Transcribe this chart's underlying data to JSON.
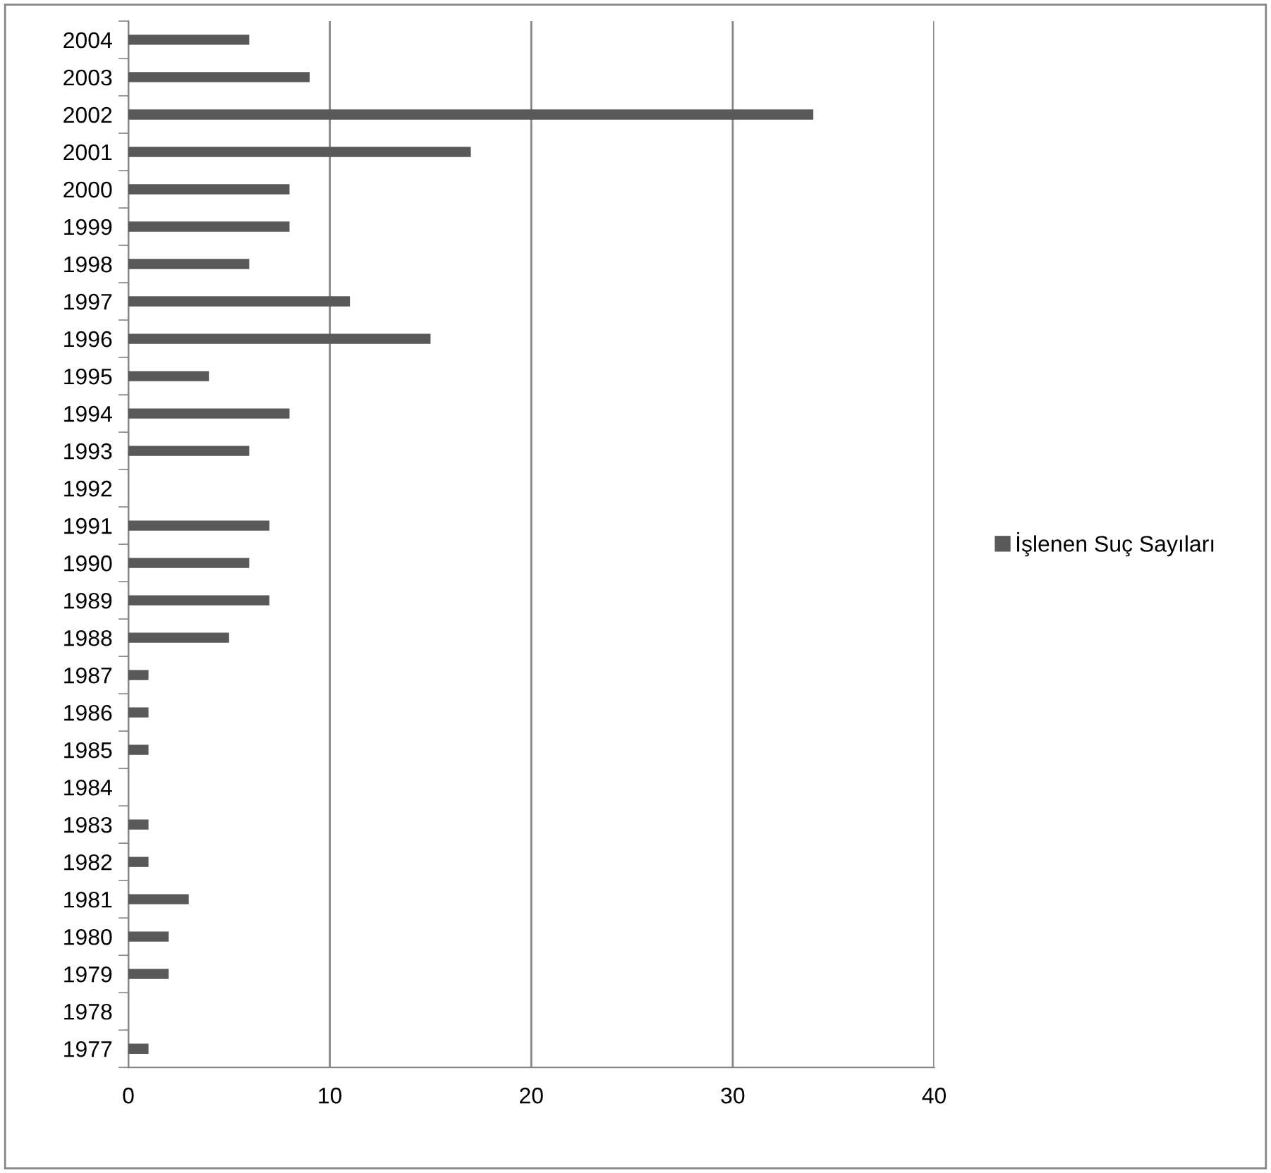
{
  "chart_data": {
    "type": "bar",
    "orientation": "horizontal",
    "categories": [
      "2004",
      "2003",
      "2002",
      "2001",
      "2000",
      "1999",
      "1998",
      "1997",
      "1996",
      "1995",
      "1994",
      "1993",
      "1992",
      "1991",
      "1990",
      "1989",
      "1988",
      "1987",
      "1986",
      "1985",
      "1984",
      "1983",
      "1982",
      "1981",
      "1980",
      "1979",
      "1978",
      "1977"
    ],
    "series": [
      {
        "name": "İşlenen Suç Sayıları",
        "color": "#595959",
        "values": [
          6,
          9,
          34,
          17,
          8,
          8,
          6,
          11,
          15,
          4,
          8,
          6,
          0,
          7,
          6,
          7,
          5,
          1,
          1,
          1,
          0,
          1,
          1,
          3,
          2,
          2,
          0,
          1
        ]
      }
    ],
    "xlim": [
      0,
      40
    ],
    "xticks": [
      0,
      10,
      20,
      30,
      40
    ],
    "grid": "x",
    "legend": "right"
  }
}
